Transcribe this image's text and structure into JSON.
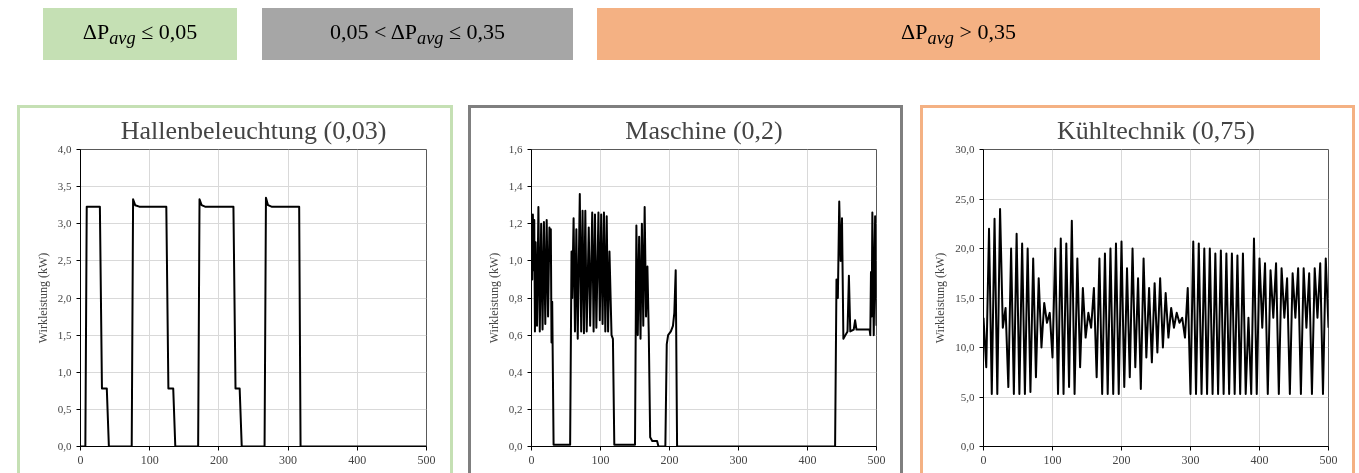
{
  "chart_data": [
    {
      "type": "line",
      "title": "Hallenbeleuchtung (0,03)",
      "annotations": [
        "ΔP$_{avg}$ ≤ 0,05"
      ],
      "ylabel": "Wirkleistung (kW)",
      "x": [
        0,
        7,
        9,
        28,
        31,
        38,
        41,
        74,
        76,
        79,
        85,
        124,
        127,
        134,
        137,
        170,
        172,
        175,
        180,
        221,
        224,
        230,
        233,
        266,
        268,
        271,
        276,
        316,
        318,
        500
      ],
      "series": [
        {
          "color": "#000000",
          "values": [
            0,
            0,
            3.23,
            3.23,
            0.78,
            0.78,
            0,
            0,
            3.33,
            3.25,
            3.23,
            3.23,
            0.78,
            0.78,
            0,
            0,
            3.33,
            3.25,
            3.23,
            3.23,
            0.78,
            0.78,
            0,
            0,
            3.35,
            3.25,
            3.23,
            3.23,
            0,
            0
          ]
        }
      ],
      "xlim": [
        0,
        500
      ],
      "ylim": [
        0,
        4
      ],
      "xticks": [
        0,
        100,
        200,
        300,
        400,
        500
      ],
      "yticks": [
        {
          "value": 0,
          "label": "0,0"
        },
        {
          "value": 0.5,
          "label": "0,5"
        },
        {
          "value": 1,
          "label": "1,0"
        },
        {
          "value": 1.5,
          "label": "1,5"
        },
        {
          "value": 2,
          "label": "2,0"
        },
        {
          "value": 2.5,
          "label": "2,5"
        },
        {
          "value": 3,
          "label": "3,0"
        },
        {
          "value": 3.5,
          "label": "3,5"
        },
        {
          "value": 4,
          "label": "4,0"
        }
      ],
      "grid": true,
      "marker": "none",
      "line_style": "solid"
    },
    {
      "type": "line",
      "title": "Maschine (0,2)",
      "annotations": [
        "0,05 < ΔP$_{avg}$ ≤ 0,35"
      ],
      "ylabel": "Wirkleistung (kW)",
      "x": [
        0,
        1,
        2,
        3,
        4,
        5,
        6,
        8,
        10,
        12,
        14,
        16,
        18,
        20,
        22,
        24,
        26,
        27,
        28,
        29,
        30,
        32,
        56,
        58,
        59,
        61,
        63,
        65,
        67,
        70,
        72,
        74,
        76,
        78,
        80,
        83,
        85,
        88,
        90,
        92,
        94,
        97,
        99,
        101,
        103,
        105,
        107,
        109,
        111,
        113,
        116,
        118,
        120,
        150,
        152,
        154,
        156,
        158,
        160,
        162,
        164,
        166,
        168,
        170,
        172,
        175,
        182,
        184,
        194,
        196,
        198,
        202,
        205,
        207,
        209,
        211,
        440,
        442,
        444,
        446,
        448,
        450,
        452,
        455,
        458,
        460,
        462,
        467,
        469,
        471,
        490,
        491,
        492,
        493,
        494,
        496,
        498,
        500
      ],
      "series": [
        {
          "color": "#000000",
          "values": [
            1.05,
            0.9,
            1.25,
            0.95,
            1.22,
            0.62,
            1.1,
            0.65,
            1.29,
            0.62,
            1.2,
            0.63,
            1.21,
            0.66,
            1.22,
            0.7,
            1.18,
            1.0,
            1.17,
            0.56,
            0.78,
            0.01,
            0.01,
            1.05,
            0.8,
            1.23,
            0.62,
            1.17,
            0.58,
            1.36,
            0.62,
            1.27,
            0.61,
            1.27,
            0.62,
            1.18,
            0.65,
            1.26,
            0.62,
            1.25,
            0.64,
            1.26,
            0.68,
            1.25,
            0.66,
            1.26,
            0.62,
            1.24,
            0.62,
            1.05,
            0.6,
            0.58,
            0.01,
            0.01,
            1.19,
            0.6,
            1.13,
            0.58,
            1.2,
            0.65,
            1.29,
            0.7,
            0.97,
            0.6,
            0.05,
            0.03,
            0.03,
            0.0,
            0.0,
            0.55,
            0.6,
            0.62,
            0.65,
            0.72,
            0.95,
            0.0,
            0.0,
            0.9,
            0.8,
            1.32,
            1.0,
            1.23,
            0.58,
            0.6,
            0.62,
            0.92,
            0.62,
            0.63,
            0.68,
            0.63,
            0.63,
            0.6,
            0.94,
            0.7,
            1.26,
            0.6,
            1.24,
            0.65
          ]
        }
      ],
      "xlim": [
        0,
        500
      ],
      "ylim": [
        0,
        1.6
      ],
      "xticks": [
        0,
        100,
        200,
        300,
        400,
        500
      ],
      "yticks": [
        {
          "value": 0,
          "label": "0,0"
        },
        {
          "value": 0.2,
          "label": "0,2"
        },
        {
          "value": 0.4,
          "label": "0,4"
        },
        {
          "value": 0.6,
          "label": "0,6"
        },
        {
          "value": 0.8,
          "label": "0,8"
        },
        {
          "value": 1,
          "label": "1,0"
        },
        {
          "value": 1.2,
          "label": "1,2"
        },
        {
          "value": 1.4,
          "label": "1,4"
        },
        {
          "value": 1.6,
          "label": "1,6"
        }
      ],
      "grid": true,
      "marker": "none",
      "line_style": "solid"
    },
    {
      "type": "line",
      "title": "Kühltechnik (0,75)",
      "annotations": [
        "ΔP$_{avg}$ > 0,35"
      ],
      "ylabel": "Wirkleistung (kW)",
      "x": [
        0,
        4,
        8,
        12,
        16,
        20,
        24,
        28,
        32,
        36,
        40,
        44,
        48,
        52,
        56,
        60,
        64,
        68,
        72,
        76,
        80,
        84,
        88,
        92,
        96,
        100,
        104,
        108,
        112,
        116,
        120,
        124,
        128,
        132,
        136,
        140,
        144,
        148,
        152,
        156,
        160,
        164,
        168,
        172,
        176,
        180,
        184,
        188,
        192,
        196,
        200,
        204,
        208,
        212,
        216,
        220,
        224,
        228,
        232,
        236,
        240,
        244,
        248,
        252,
        256,
        260,
        264,
        268,
        272,
        276,
        280,
        284,
        288,
        292,
        296,
        300,
        304,
        308,
        312,
        316,
        320,
        324,
        328,
        332,
        336,
        340,
        344,
        348,
        352,
        356,
        360,
        364,
        368,
        372,
        376,
        380,
        384,
        388,
        392,
        396,
        400,
        404,
        408,
        412,
        416,
        420,
        424,
        428,
        432,
        436,
        440,
        444,
        448,
        452,
        456,
        460,
        464,
        468,
        472,
        476,
        480,
        484,
        488,
        492,
        496,
        500
      ],
      "series": [
        {
          "color": "#000000",
          "values": [
            13,
            8,
            22,
            5.3,
            23,
            5.3,
            24,
            12,
            14,
            6,
            20,
            5.3,
            21.5,
            5.3,
            20.5,
            5.3,
            20,
            5.5,
            19,
            7,
            17,
            10,
            14.5,
            12.5,
            13.5,
            9,
            20,
            5.3,
            21,
            5.3,
            20.5,
            6,
            22.8,
            5.3,
            19,
            8,
            16,
            11,
            13.5,
            12,
            16,
            7,
            19,
            5.3,
            19.5,
            5.3,
            20,
            5.3,
            20.5,
            5.3,
            20.7,
            6,
            18,
            7,
            20,
            8,
            17,
            5.8,
            19,
            9,
            16,
            8.5,
            16.5,
            9.5,
            17,
            10,
            15.5,
            11,
            14,
            12,
            13.5,
            12.5,
            13,
            11,
            16,
            5.3,
            20.7,
            5.3,
            20.5,
            5.3,
            20,
            5.3,
            20,
            5.3,
            19.5,
            5.3,
            19.8,
            5.3,
            19.5,
            5.3,
            19.5,
            5.3,
            19.3,
            5.3,
            19.5,
            5.3,
            13,
            5.3,
            21,
            5.3,
            19,
            12,
            18.5,
            5.3,
            17.8,
            13,
            18.5,
            5.3,
            18,
            13,
            17,
            5.3,
            17.5,
            13,
            18,
            5.3,
            18,
            12,
            17.5,
            5.3,
            18,
            13,
            18.5,
            5.3,
            19,
            12
          ]
        }
      ],
      "xlim": [
        0,
        500
      ],
      "ylim": [
        0,
        30
      ],
      "xticks": [
        0,
        100,
        200,
        300,
        400,
        500
      ],
      "yticks": [
        {
          "value": 0,
          "label": "0,0"
        },
        {
          "value": 5,
          "label": "5,0"
        },
        {
          "value": 10,
          "label": "10,0"
        },
        {
          "value": 15,
          "label": "15,0"
        },
        {
          "value": 20,
          "label": "20,0"
        },
        {
          "value": 25,
          "label": "25,0"
        },
        {
          "value": 30,
          "label": "30,0"
        }
      ],
      "grid": true,
      "marker": "none",
      "line_style": "solid"
    }
  ]
}
